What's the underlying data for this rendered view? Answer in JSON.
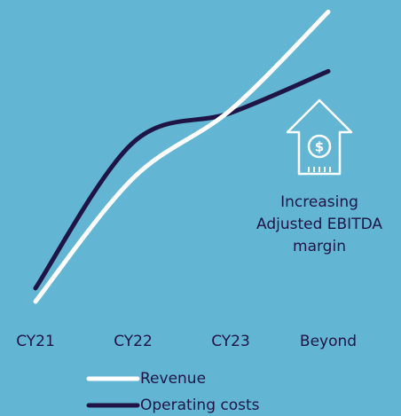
{
  "chart_data": {
    "type": "line",
    "categories": [
      "CY21",
      "CY22",
      "CY23",
      "Beyond"
    ],
    "series": [
      {
        "name": "Revenue",
        "color": "#ffffff",
        "values": [
          1.5,
          43,
          66,
          99
        ]
      },
      {
        "name": "Operating costs",
        "color": "#1e1446",
        "values": [
          6,
          55,
          65,
          79
        ]
      }
    ],
    "ylim": [
      0,
      100
    ],
    "annotation": [
      "Increasing",
      "Adjusted EBITDA",
      "margin"
    ]
  }
}
